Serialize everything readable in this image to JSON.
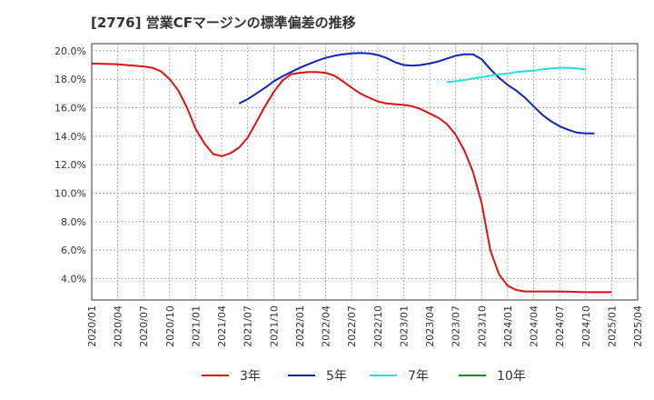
{
  "chart_data": {
    "type": "line",
    "title": "[2776]  営業CFマージンの標準偏差の推移",
    "xlabel": "",
    "ylabel": "",
    "ylim": [
      2.5,
      20.5
    ],
    "y_ticks": [
      "4.0%",
      "6.0%",
      "8.0%",
      "10.0%",
      "12.0%",
      "14.0%",
      "16.0%",
      "18.0%",
      "20.0%"
    ],
    "y_tick_values": [
      4,
      6,
      8,
      10,
      12,
      14,
      16,
      18,
      20
    ],
    "x_ticks": [
      "2020/01",
      "2020/04",
      "2020/07",
      "2020/10",
      "2021/01",
      "2021/04",
      "2021/07",
      "2021/10",
      "2022/01",
      "2022/04",
      "2022/07",
      "2022/10",
      "2023/01",
      "2023/04",
      "2023/07",
      "2023/10",
      "2024/01",
      "2024/04",
      "2024/07",
      "2024/10",
      "2025/01",
      "2025/04"
    ],
    "grid": true,
    "legend": "bottom",
    "series": [
      {
        "name": "3年",
        "color": "#dd1111",
        "points": [
          [
            "2020/01",
            19.1
          ],
          [
            "2020/04",
            19.05
          ],
          [
            "2020/07",
            18.9
          ],
          [
            "2020/08",
            18.8
          ],
          [
            "2020/09",
            18.55
          ],
          [
            "2020/10",
            18.0
          ],
          [
            "2020/11",
            17.2
          ],
          [
            "2020/12",
            16.0
          ],
          [
            "2021/01",
            14.5
          ],
          [
            "2021/02",
            13.5
          ],
          [
            "2021/03",
            12.75
          ],
          [
            "2021/04",
            12.6
          ],
          [
            "2021/05",
            12.8
          ],
          [
            "2021/06",
            13.2
          ],
          [
            "2021/07",
            13.9
          ],
          [
            "2021/08",
            15.0
          ],
          [
            "2021/09",
            16.1
          ],
          [
            "2021/10",
            17.1
          ],
          [
            "2021/11",
            17.9
          ],
          [
            "2021/12",
            18.35
          ],
          [
            "2022/01",
            18.45
          ],
          [
            "2022/02",
            18.5
          ],
          [
            "2022/03",
            18.5
          ],
          [
            "2022/04",
            18.45
          ],
          [
            "2022/05",
            18.25
          ],
          [
            "2022/06",
            17.85
          ],
          [
            "2022/07",
            17.4
          ],
          [
            "2022/08",
            17.0
          ],
          [
            "2022/09",
            16.7
          ],
          [
            "2022/10",
            16.45
          ],
          [
            "2022/11",
            16.3
          ],
          [
            "2022/12",
            16.25
          ],
          [
            "2023/01",
            16.2
          ],
          [
            "2023/02",
            16.1
          ],
          [
            "2023/03",
            15.9
          ],
          [
            "2023/04",
            15.6
          ],
          [
            "2023/05",
            15.3
          ],
          [
            "2023/06",
            14.85
          ],
          [
            "2023/07",
            14.1
          ],
          [
            "2023/08",
            13.0
          ],
          [
            "2023/09",
            11.5
          ],
          [
            "2023/10",
            9.3
          ],
          [
            "2023/11",
            6.0
          ],
          [
            "2023/12",
            4.3
          ],
          [
            "2024/01",
            3.5
          ],
          [
            "2024/02",
            3.2
          ],
          [
            "2024/03",
            3.1
          ],
          [
            "2024/04",
            3.1
          ],
          [
            "2024/07",
            3.1
          ],
          [
            "2024/10",
            3.05
          ],
          [
            "2025/01",
            3.05
          ]
        ]
      },
      {
        "name": "5年",
        "color": "#1122bb",
        "points": [
          [
            "2021/06",
            16.3
          ],
          [
            "2021/07",
            16.6
          ],
          [
            "2021/08",
            17.0
          ],
          [
            "2021/09",
            17.4
          ],
          [
            "2021/10",
            17.85
          ],
          [
            "2021/11",
            18.2
          ],
          [
            "2021/12",
            18.5
          ],
          [
            "2022/01",
            18.8
          ],
          [
            "2022/02",
            19.05
          ],
          [
            "2022/03",
            19.3
          ],
          [
            "2022/04",
            19.5
          ],
          [
            "2022/05",
            19.65
          ],
          [
            "2022/06",
            19.75
          ],
          [
            "2022/07",
            19.82
          ],
          [
            "2022/08",
            19.85
          ],
          [
            "2022/09",
            19.82
          ],
          [
            "2022/10",
            19.7
          ],
          [
            "2022/11",
            19.5
          ],
          [
            "2022/12",
            19.2
          ],
          [
            "2023/01",
            19.0
          ],
          [
            "2023/02",
            18.95
          ],
          [
            "2023/03",
            19.0
          ],
          [
            "2023/04",
            19.1
          ],
          [
            "2023/05",
            19.25
          ],
          [
            "2023/06",
            19.45
          ],
          [
            "2023/07",
            19.65
          ],
          [
            "2023/08",
            19.75
          ],
          [
            "2023/09",
            19.75
          ],
          [
            "2023/10",
            19.4
          ],
          [
            "2023/11",
            18.7
          ],
          [
            "2023/12",
            18.1
          ],
          [
            "2024/01",
            17.6
          ],
          [
            "2024/02",
            17.2
          ],
          [
            "2024/03",
            16.7
          ],
          [
            "2024/04",
            16.1
          ],
          [
            "2024/05",
            15.5
          ],
          [
            "2024/06",
            15.05
          ],
          [
            "2024/07",
            14.7
          ],
          [
            "2024/08",
            14.45
          ],
          [
            "2024/09",
            14.25
          ],
          [
            "2024/10",
            14.2
          ],
          [
            "2024/11",
            14.2
          ]
        ]
      },
      {
        "name": "7年",
        "color": "#22dddd",
        "points": [
          [
            "2023/06",
            17.8
          ],
          [
            "2023/07",
            17.85
          ],
          [
            "2023/08",
            17.95
          ],
          [
            "2023/09",
            18.05
          ],
          [
            "2023/10",
            18.15
          ],
          [
            "2023/11",
            18.25
          ],
          [
            "2023/12",
            18.35
          ],
          [
            "2024/01",
            18.4
          ],
          [
            "2024/02",
            18.5
          ],
          [
            "2024/03",
            18.55
          ],
          [
            "2024/04",
            18.6
          ],
          [
            "2024/05",
            18.7
          ],
          [
            "2024/06",
            18.75
          ],
          [
            "2024/07",
            18.8
          ],
          [
            "2024/08",
            18.8
          ],
          [
            "2024/09",
            18.75
          ],
          [
            "2024/10",
            18.7
          ]
        ]
      },
      {
        "name": "10年",
        "color": "#228822",
        "points": []
      }
    ]
  }
}
